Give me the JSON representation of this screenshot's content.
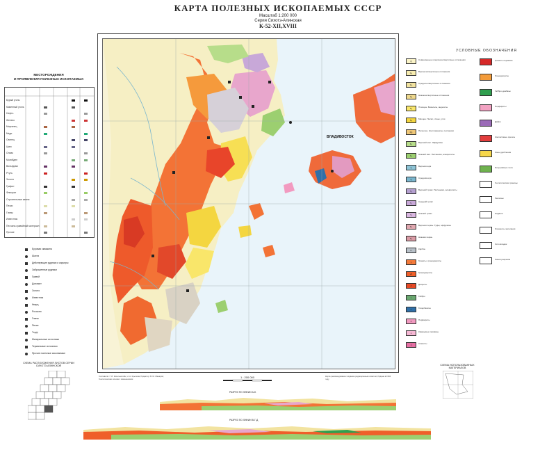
{
  "header": {
    "title": "КАРТА ПОЛЕЗНЫХ ИСКОПАЕМЫХ СССР",
    "scale_text": "Масштаб 1:200 000",
    "series": "Серия Сихотэ-Алинская",
    "sheet": "К-52-XII,XVIII"
  },
  "map": {
    "city_label": "ВЛАДИВОСТОК",
    "scale_label": "1 : 200 000"
  },
  "left_panel": {
    "title_line1": "МЕСТОРОЖДЕНИЯ",
    "title_line2": "И ПРОЯВЛЕНИЯ ПОЛЕЗНЫХ ИСКОПАЕМЫХ",
    "rows": [
      "Бурый уголь",
      "Каменный уголь",
      "Нефть",
      "Железо",
      "Марганец",
      "Медь",
      "Свинец",
      "Цинк",
      "Олово",
      "Молибден",
      "Вольфрам",
      "Ртуть",
      "Золото",
      "Графит",
      "Флюорит",
      "Строительные камни",
      "Пески",
      "Глины",
      "Известняк",
      "Песчано-гравийный материал",
      "Прочие"
    ]
  },
  "symbols": {
    "rows": [
      "Буровая скважина",
      "Шахта",
      "Действующие рудники и карьеры",
      "Заброшенные рудники",
      "Гравий",
      "Доломит",
      "Золото",
      "Известняк",
      "Кварц",
      "Россыпи",
      "Глины",
      "Пески",
      "Торф",
      "Минеральные источники",
      "Термальные источники",
      "Прочие полезные ископаемые"
    ]
  },
  "legend": {
    "title": "УСЛОВНЫЕ ОБОЗНАЧЕНИЯ",
    "strat": [
      {
        "code": "Q",
        "color": "#fbf4c8",
        "text": "Современные и верхнечетвертичные отложения"
      },
      {
        "code": "Q₃",
        "color": "#f7ecb0",
        "text": "Верхнечетвертичные отложения"
      },
      {
        "code": "Q₂",
        "color": "#f2e3a0",
        "text": "Среднечетвертичные отложения"
      },
      {
        "code": "Q₁",
        "color": "#eed88e",
        "text": "Нижнечетвертичные отложения"
      },
      {
        "code": "N₂",
        "color": "#f9e66a",
        "text": "Плиоцен. Базальты, андезиты"
      },
      {
        "code": "N₁",
        "color": "#f4d640",
        "text": "Миоцен. Пески, глины, угли"
      },
      {
        "code": "Pg",
        "color": "#f0c878",
        "text": "Палеоген. Конгломераты, песчаники"
      },
      {
        "code": "K₂",
        "color": "#b7dd8a",
        "text": "Верхний мел. Эффузивы"
      },
      {
        "code": "K₁",
        "color": "#9ccf70",
        "text": "Нижний мел. Песчаники, алевролиты"
      },
      {
        "code": "J₃",
        "color": "#8ec4d6",
        "text": "Верхняя юра"
      },
      {
        "code": "J₂",
        "color": "#7ab6ce",
        "text": "Средняя юра"
      },
      {
        "code": "T₃",
        "color": "#b5a0d0",
        "text": "Верхний триас. Песчаники, алевролиты"
      },
      {
        "code": "T₂",
        "color": "#c8a8d8",
        "text": "Средний триас"
      },
      {
        "code": "T₁",
        "color": "#d9b6e0",
        "text": "Нижний триас"
      },
      {
        "code": "P₂",
        "color": "#e0a8b0",
        "text": "Верхняя пермь. Туфы, эффузивы"
      },
      {
        "code": "P₁",
        "color": "#d99aa4",
        "text": "Нижняя пермь"
      },
      {
        "code": "C",
        "color": "#b8c0c8",
        "text": "Карбон"
      },
      {
        "code": "γ",
        "color": "#f47a3a",
        "text": "Граниты, гранодиориты"
      },
      {
        "code": "γδ",
        "color": "#ef5f2a",
        "text": "Гранодиориты"
      },
      {
        "code": "δ",
        "color": "#e84a26",
        "text": "Диориты"
      },
      {
        "code": "ν",
        "color": "#6aa870",
        "text": "Габбро"
      },
      {
        "code": "σ",
        "color": "#2f6fa8",
        "text": "Гипербазиты"
      },
      {
        "code": "π",
        "color": "#f29ac0",
        "text": "Порфириты"
      },
      {
        "code": "λ",
        "color": "#f6b8d4",
        "text": "Кварцевые порфиры"
      },
      {
        "code": "ξ",
        "color": "#e66fa3",
        "text": "Сиениты"
      }
    ],
    "signs": [
      {
        "color": "#d62828",
        "text": "Граниты пермские"
      },
      {
        "color": "#f39b3a",
        "text": "Гранодиориты"
      },
      {
        "color": "#2f9f4f",
        "text": "Габбро-диабазы"
      },
      {
        "color": "#f2a2c2",
        "text": "Порфириты"
      },
      {
        "color": "#9b6bb8",
        "text": "Дайки"
      },
      {
        "color": "#e23d3d",
        "text": "Контактовые ореолы"
      },
      {
        "color": "#f7d74a",
        "text": "Зоны дробления"
      },
      {
        "color": "#6fb24f",
        "text": "Интрузивные тела"
      },
      {
        "color": "#ffffff",
        "text": "Геологические границы"
      },
      {
        "color": "#ffffff",
        "text": "Разломы"
      },
      {
        "color": "#ffffff",
        "text": "Надвиги"
      },
      {
        "color": "#ffffff",
        "text": "Элементы залегания"
      },
      {
        "color": "#ffffff",
        "text": "Оси складок"
      },
      {
        "color": "#ffffff",
        "text": "Линии разрезов"
      }
    ]
  },
  "sections": {
    "section1": "РАЗРЕЗ ПО ЛИНИИ А-Б",
    "section2": "РАЗРЕЗ ПО ЛИНИИ В-Г-Д"
  },
  "schemes": {
    "left": "СХЕМА РАСПОЛОЖЕНИЯ ЛИСТОВ СЕРИИ СИХОТЭ-АЛИНСКОЙ",
    "right": "СХЕМА ИСПОЛЬЗОВАННЫХ МАТЕРИАЛОВ"
  },
  "notes": {
    "left": "Составили: Г. И. Кизельштейн, Н. А. Крылова; Редактор: В. М. Макаров; Геологическая основа с изменениями",
    "right": "Карта рекомендована к изданию редакционным советом; Издана в 1962 году"
  }
}
